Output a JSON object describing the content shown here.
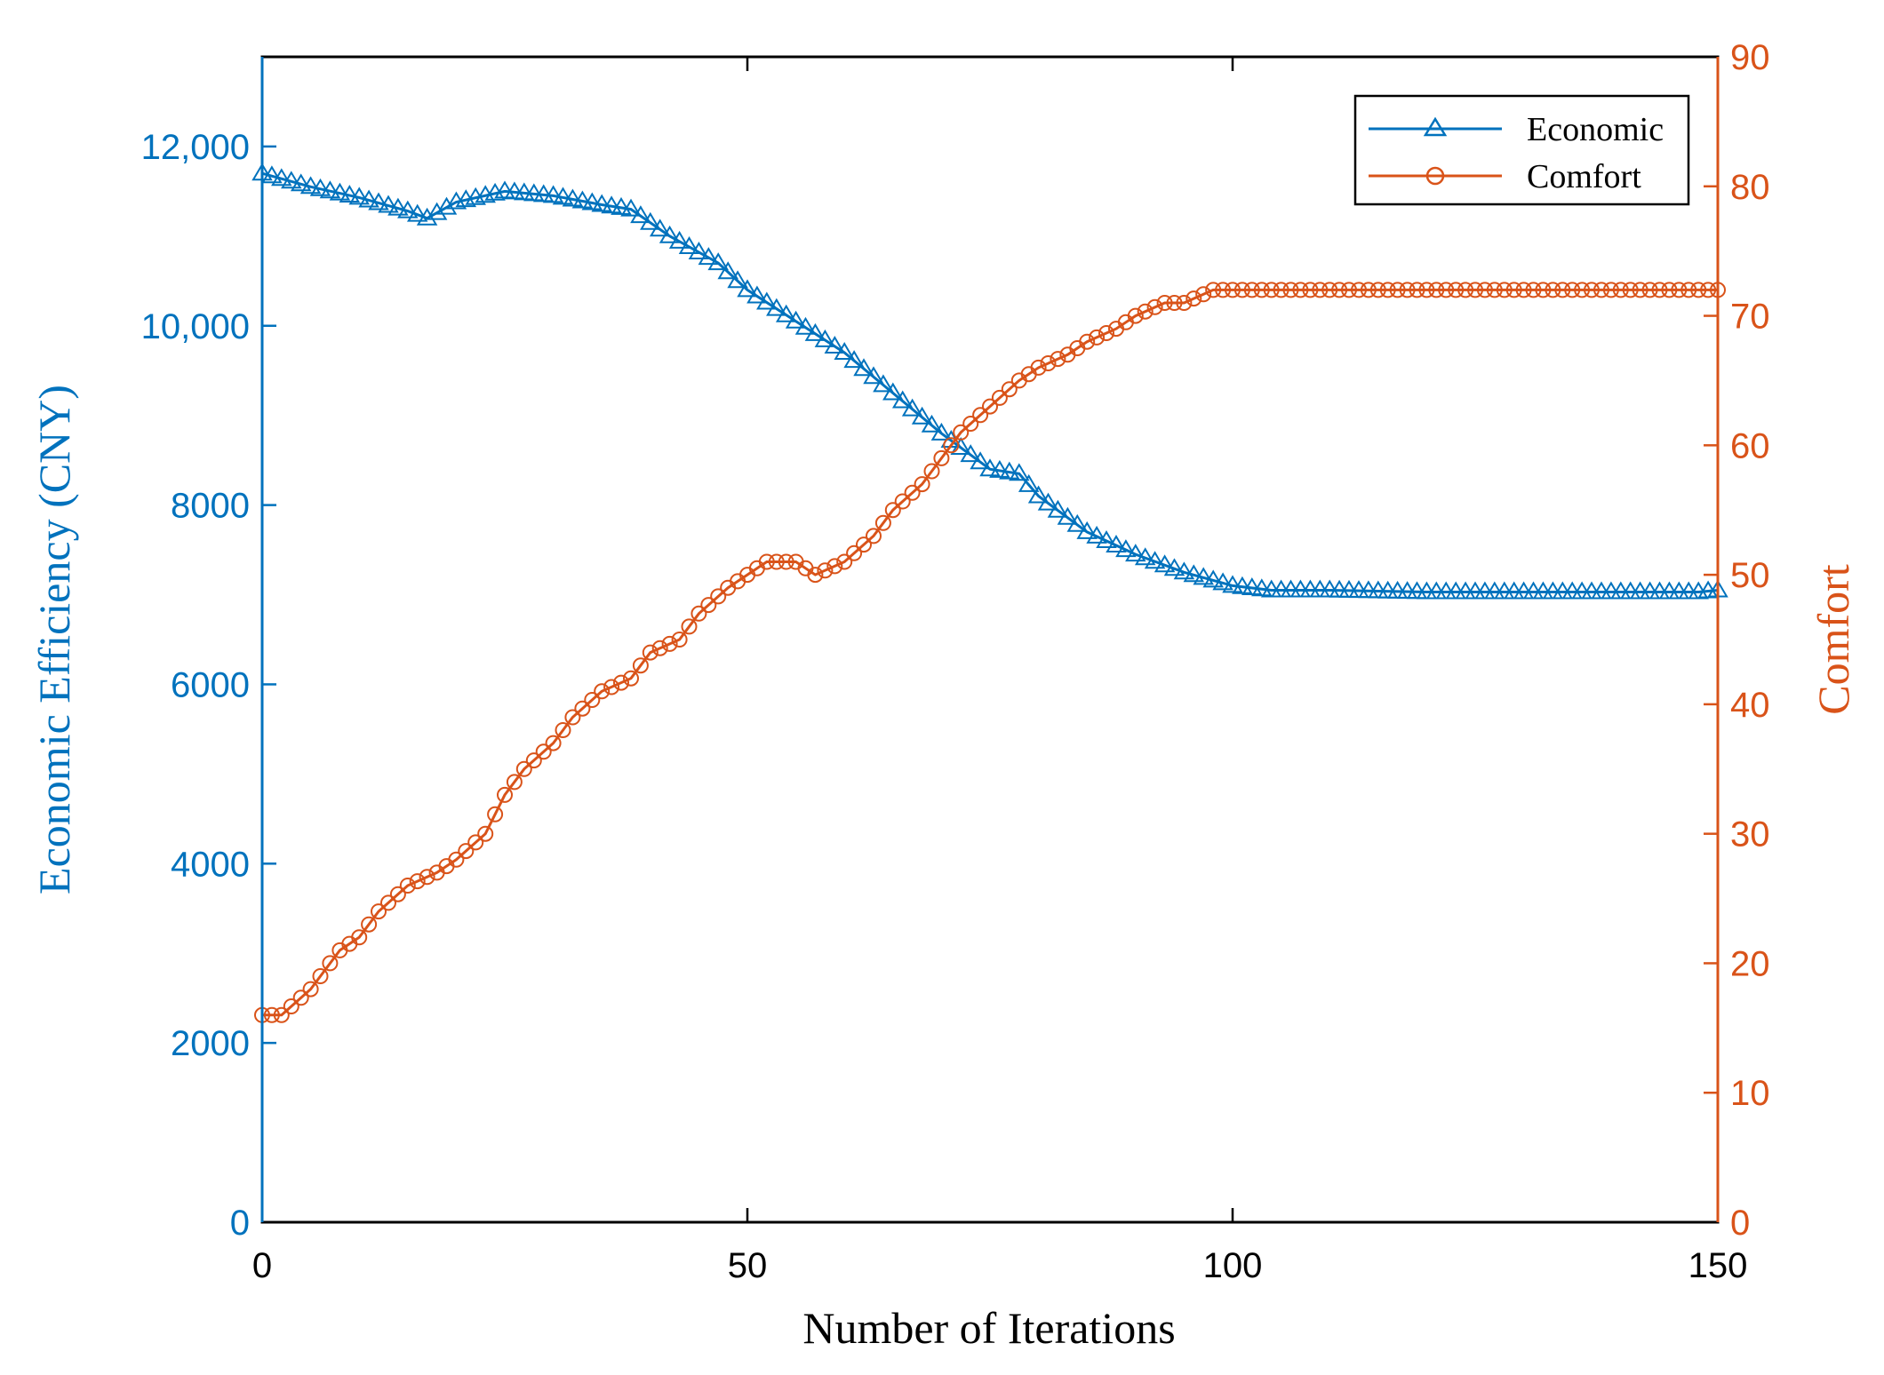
{
  "chart_data": {
    "type": "line",
    "title": "",
    "xlabel": "Number of Iterations",
    "ylabel_left": "Economic Efficiency (CNY)",
    "ylabel_right": "Comfort",
    "xlim": [
      0,
      150
    ],
    "ylim_left": [
      0,
      13000
    ],
    "ylim_right": [
      0,
      90
    ],
    "x_ticks": [
      "0",
      "50",
      "100",
      "150"
    ],
    "y_left_ticks": [
      "0",
      "2000",
      "4000",
      "6000",
      "8000",
      "10,000",
      "12,000"
    ],
    "y_right_ticks": [
      "0",
      "10",
      "20",
      "30",
      "40",
      "50",
      "60",
      "70",
      "80",
      "90"
    ],
    "legend": {
      "position": "top-right",
      "entries": [
        "Economic",
        "Comfort"
      ]
    },
    "colors": {
      "economic": "#0072BD",
      "comfort": "#D95319",
      "axis": "#000000"
    },
    "series": [
      {
        "name": "Economic",
        "axis": "left",
        "marker": "triangle",
        "x": [
          0,
          5,
          10,
          15,
          17,
          20,
          25,
          30,
          35,
          38,
          42,
          47,
          50,
          55,
          60,
          65,
          70,
          75,
          78,
          80,
          85,
          90,
          95,
          100,
          104,
          110,
          120,
          130,
          140,
          148,
          150
        ],
        "values": [
          11700,
          11550,
          11430,
          11280,
          11200,
          11380,
          11500,
          11450,
          11350,
          11300,
          11000,
          10700,
          10400,
          10050,
          9700,
          9250,
          8800,
          8400,
          8350,
          8100,
          7700,
          7450,
          7250,
          7100,
          7050,
          7050,
          7030,
          7030,
          7030,
          7030,
          7050
        ]
      },
      {
        "name": "Comfort",
        "axis": "right",
        "marker": "circle",
        "x": [
          0,
          2,
          5,
          8,
          10,
          12,
          15,
          18,
          20,
          23,
          25,
          27,
          30,
          32,
          35,
          38,
          40,
          43,
          45,
          48,
          50,
          52,
          55,
          57,
          60,
          63,
          65,
          68,
          70,
          72,
          75,
          78,
          80,
          83,
          85,
          88,
          90,
          93,
          95,
          98,
          100,
          104,
          110,
          115,
          120,
          130,
          140,
          150
        ],
        "values": [
          16,
          16,
          18,
          21,
          22,
          24,
          26,
          27,
          28,
          30,
          33,
          35,
          37,
          39,
          41,
          42,
          44,
          45,
          47,
          49,
          50,
          51,
          51,
          50,
          51,
          53,
          55,
          57,
          59,
          61,
          63,
          65,
          66,
          67,
          68,
          69,
          70,
          71,
          71,
          72,
          72,
          72,
          72,
          72,
          72,
          72,
          72,
          72
        ]
      }
    ]
  }
}
